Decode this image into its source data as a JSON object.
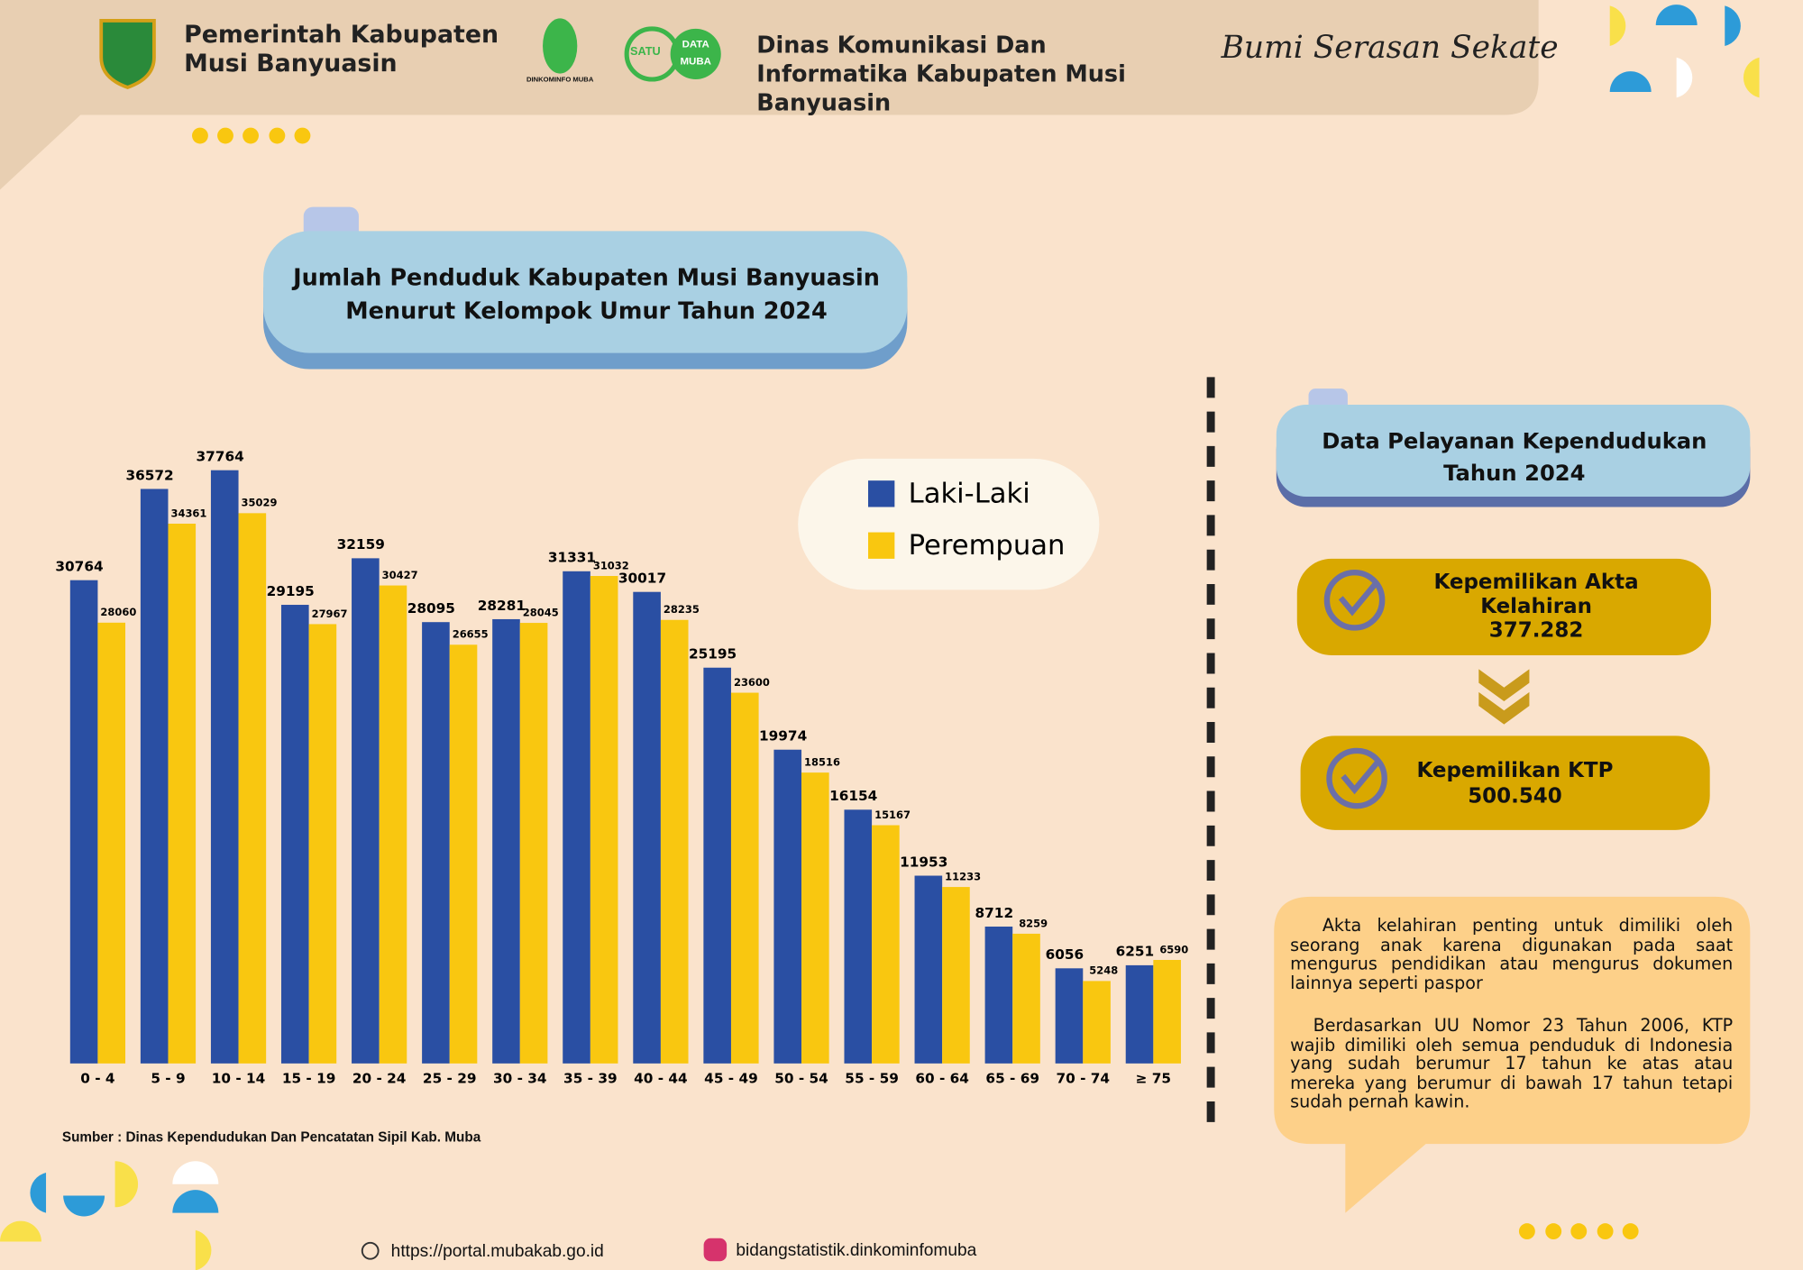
{
  "header": {
    "org": "Pemerintah Kabupaten Musi Banyuasin",
    "logo_caption": "DINKOMINFO MUBA",
    "badge": [
      "SATU",
      "DATA",
      "MUBA"
    ],
    "dept": "Dinas Komunikasi Dan Informatika Kabupaten Musi Banyuasin",
    "motto": "Bumi Serasan Sekate"
  },
  "chart_data": {
    "type": "bar",
    "title": "Jumlah Penduduk Kabupaten Musi Banyuasin Menurut Kelompok Umur Tahun 2024",
    "categories": [
      "0 - 4",
      "5 - 9",
      "10 - 14",
      "15 - 19",
      "20 - 24",
      "25 - 29",
      "30 - 34",
      "35 - 39",
      "40 - 44",
      "45 - 49",
      "50 - 54",
      "55 - 59",
      "60 - 64",
      "65 - 69",
      "70 - 74",
      "≥ 75"
    ],
    "series": [
      {
        "name": "Laki-Laki",
        "color": "#2a4fa3",
        "values": [
          30764,
          36572,
          37764,
          29195,
          32159,
          28095,
          28281,
          31331,
          30017,
          25195,
          19974,
          16154,
          11953,
          8712,
          6056,
          6251
        ]
      },
      {
        "name": "Perempuan",
        "color": "#f9c710",
        "values": [
          28060,
          34361,
          35029,
          27967,
          30427,
          26655,
          28045,
          31032,
          28235,
          23600,
          18516,
          15167,
          11233,
          8259,
          5248,
          6590
        ]
      }
    ],
    "source": "Sumber : Dinas Kependudukan Dan Pencatatan Sipil Kab. Muba"
  },
  "panel": {
    "title": "Data Pelayanan Kependudukan Tahun 2024",
    "items": [
      {
        "label": "Kepemilikan Akta Kelahiran",
        "value": "377.282"
      },
      {
        "label": "Kepemilikan KTP",
        "value": "500.540"
      }
    ],
    "notes": [
      "Akta kelahiran penting untuk dimiliki oleh seorang anak karena digunakan pada saat mengurus pendidikan atau mengurus dokumen lainnya seperti paspor",
      "Berdasarkan UU Nomor 23 Tahun 2006, KTP wajib dimiliki oleh semua penduduk di Indonesia yang sudah berumur 17 tahun ke atas atau mereka yang berumur di bawah 17 tahun tetapi sudah pernah kawin."
    ]
  },
  "footer": {
    "url": "https://portal.mubakab.go.id",
    "instagram": "bidangstatistik.dinkominfomuba"
  }
}
